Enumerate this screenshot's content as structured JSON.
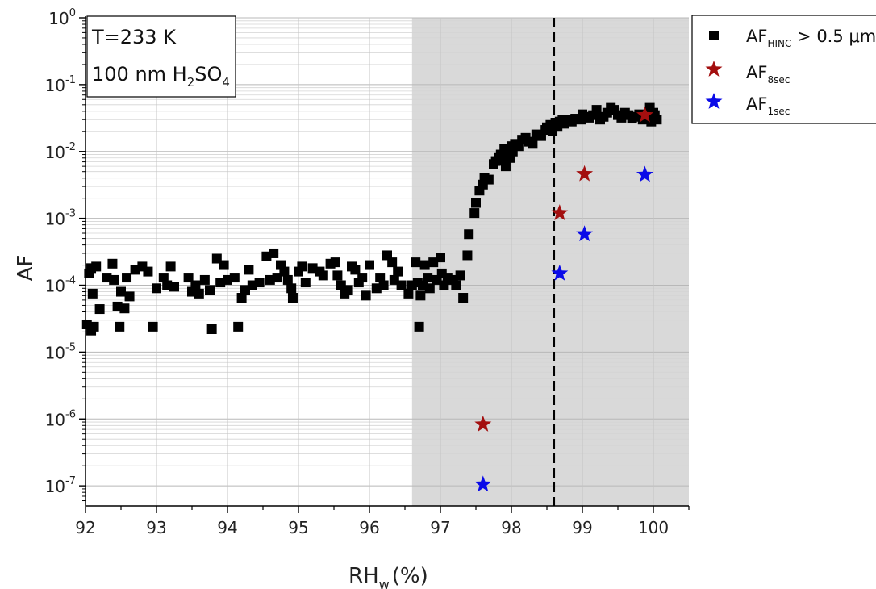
{
  "chart_data": {
    "type": "scatter",
    "xlabel_main": "RH",
    "xlabel_sub": "w",
    "xlabel_unit": "(%)",
    "ylabel": "AF",
    "xlim": [
      92,
      100.5
    ],
    "ylim_log10": [
      -7.3,
      0
    ],
    "y_scale": "log",
    "grid": true,
    "legend_placement": "top-right, outside plot",
    "x_ticks": [
      "92",
      "93",
      "94",
      "95",
      "96",
      "97",
      "98",
      "99",
      "100"
    ],
    "y_ticks": [
      {
        "base": "10",
        "exp": "0"
      },
      {
        "base": "10",
        "exp": "-1"
      },
      {
        "base": "10",
        "exp": "-2"
      },
      {
        "base": "10",
        "exp": "-3"
      },
      {
        "base": "10",
        "exp": "-4"
      },
      {
        "base": "10",
        "exp": "-5"
      },
      {
        "base": "10",
        "exp": "-6"
      },
      {
        "base": "10",
        "exp": "-7"
      }
    ],
    "shaded_region_x": [
      96.6,
      100.5
    ],
    "dashed_line_x": 98.6,
    "annotation": {
      "line1": "T=233 K",
      "line2_main": "100 nm H",
      "line2_sub1": "2",
      "line2_mid": "SO",
      "line2_sub2": "4"
    },
    "series": [
      {
        "name": "AF_HINC > 0.5 μm",
        "label_main": "AF",
        "label_sub": "HINC",
        "label_rest": " > 0.5 μm",
        "marker": "square",
        "color": "#000000",
        "points": [
          [
            92.02,
            2.6e-05
          ],
          [
            92.05,
            0.00015
          ],
          [
            92.08,
            0.00018
          ],
          [
            92.1,
            7.5e-05
          ],
          [
            92.12,
            2.4e-05
          ],
          [
            92.08,
            2.1e-05
          ],
          [
            92.15,
            0.00019
          ],
          [
            92.2,
            4.4e-05
          ],
          [
            92.3,
            0.00013
          ],
          [
            92.38,
            0.00021
          ],
          [
            92.4,
            0.00012
          ],
          [
            92.45,
            4.8e-05
          ],
          [
            92.48,
            2.4e-05
          ],
          [
            92.5,
            8e-05
          ],
          [
            92.55,
            4.5e-05
          ],
          [
            92.58,
            0.00013
          ],
          [
            92.62,
            6.8e-05
          ],
          [
            92.7,
            0.00017
          ],
          [
            92.8,
            0.00019
          ],
          [
            92.88,
            0.00016
          ],
          [
            92.95,
            2.4e-05
          ],
          [
            93.0,
            9e-05
          ],
          [
            93.1,
            0.00013
          ],
          [
            93.15,
            0.0001
          ],
          [
            93.2,
            0.00019
          ],
          [
            93.25,
            9.5e-05
          ],
          [
            93.45,
            0.00013
          ],
          [
            93.5,
            8e-05
          ],
          [
            93.55,
            0.0001
          ],
          [
            93.6,
            7.5e-05
          ],
          [
            93.68,
            0.00012
          ],
          [
            93.75,
            8.5e-05
          ],
          [
            93.78,
            2.2e-05
          ],
          [
            93.85,
            0.00025
          ],
          [
            93.9,
            0.00011
          ],
          [
            93.95,
            0.0002
          ],
          [
            94.0,
            0.00012
          ],
          [
            94.1,
            0.00013
          ],
          [
            94.15,
            2.4e-05
          ],
          [
            94.2,
            6.5e-05
          ],
          [
            94.25,
            8.5e-05
          ],
          [
            94.3,
            0.00017
          ],
          [
            94.35,
            0.0001
          ],
          [
            94.45,
            0.00011
          ],
          [
            94.55,
            0.00027
          ],
          [
            94.65,
            0.0003
          ],
          [
            94.6,
            0.00012
          ],
          [
            94.7,
            0.00013
          ],
          [
            94.75,
            0.0002
          ],
          [
            94.8,
            0.00016
          ],
          [
            94.85,
            0.00012
          ],
          [
            94.9,
            9e-05
          ],
          [
            94.92,
            6.5e-05
          ],
          [
            95.0,
            0.00016
          ],
          [
            95.05,
            0.00019
          ],
          [
            95.1,
            0.00011
          ],
          [
            95.2,
            0.00018
          ],
          [
            95.3,
            0.00016
          ],
          [
            95.35,
            0.00014
          ],
          [
            95.45,
            0.00021
          ],
          [
            95.52,
            0.00022
          ],
          [
            95.55,
            0.00014
          ],
          [
            95.6,
            0.0001
          ],
          [
            95.65,
            7.5e-05
          ],
          [
            95.7,
            8.5e-05
          ],
          [
            95.75,
            0.00019
          ],
          [
            95.8,
            0.00017
          ],
          [
            95.85,
            0.00011
          ],
          [
            95.9,
            0.00013
          ],
          [
            95.95,
            7e-05
          ],
          [
            96.0,
            0.0002
          ],
          [
            96.1,
            9e-05
          ],
          [
            96.15,
            0.00013
          ],
          [
            96.2,
            0.0001
          ],
          [
            96.25,
            0.00028
          ],
          [
            96.32,
            0.00022
          ],
          [
            96.35,
            0.00012
          ],
          [
            96.4,
            0.00016
          ],
          [
            96.45,
            0.0001
          ],
          [
            96.55,
            7.5e-05
          ],
          [
            96.6,
            0.0001
          ],
          [
            96.65,
            0.00022
          ],
          [
            96.68,
            0.00011
          ],
          [
            96.7,
            2.4e-05
          ],
          [
            96.72,
            7e-05
          ],
          [
            96.75,
            0.0001
          ],
          [
            96.78,
            0.0002
          ],
          [
            96.82,
            0.00013
          ],
          [
            96.85,
            9e-05
          ],
          [
            96.9,
            0.00022
          ],
          [
            96.95,
            0.00012
          ],
          [
            97.0,
            0.00026
          ],
          [
            97.02,
            0.00015
          ],
          [
            97.05,
            0.0001
          ],
          [
            97.1,
            0.00013
          ],
          [
            97.18,
            0.00012
          ],
          [
            97.22,
            0.0001
          ],
          [
            97.28,
            0.00014
          ],
          [
            97.32,
            6.5e-05
          ],
          [
            97.38,
            0.00028
          ],
          [
            97.4,
            0.00058
          ],
          [
            97.48,
            0.0012
          ],
          [
            97.5,
            0.0017
          ],
          [
            97.55,
            0.0026
          ],
          [
            97.6,
            0.0032
          ],
          [
            97.62,
            0.004
          ],
          [
            97.68,
            0.0038
          ],
          [
            97.75,
            0.0065
          ],
          [
            97.78,
            0.0072
          ],
          [
            97.82,
            0.008
          ],
          [
            97.85,
            0.009
          ],
          [
            97.88,
            0.0075
          ],
          [
            97.9,
            0.011
          ],
          [
            97.92,
            0.006
          ],
          [
            97.95,
            0.009
          ],
          [
            97.98,
            0.008
          ],
          [
            98.0,
            0.012
          ],
          [
            98.02,
            0.01
          ],
          [
            98.05,
            0.013
          ],
          [
            98.1,
            0.012
          ],
          [
            98.15,
            0.015
          ],
          [
            98.2,
            0.016
          ],
          [
            98.25,
            0.014
          ],
          [
            98.3,
            0.013
          ],
          [
            98.35,
            0.018
          ],
          [
            98.42,
            0.017
          ],
          [
            98.48,
            0.021
          ],
          [
            98.5,
            0.023
          ],
          [
            98.55,
            0.025
          ],
          [
            98.58,
            0.02
          ],
          [
            98.62,
            0.027
          ],
          [
            98.65,
            0.024
          ],
          [
            98.68,
            0.028
          ],
          [
            98.72,
            0.03
          ],
          [
            98.75,
            0.026
          ],
          [
            98.8,
            0.03
          ],
          [
            98.85,
            0.028
          ],
          [
            98.9,
            0.031
          ],
          [
            98.98,
            0.03
          ],
          [
            99.0,
            0.036
          ],
          [
            99.05,
            0.033
          ],
          [
            99.1,
            0.032
          ],
          [
            99.15,
            0.035
          ],
          [
            99.2,
            0.042
          ],
          [
            99.25,
            0.03
          ],
          [
            99.3,
            0.033
          ],
          [
            99.35,
            0.038
          ],
          [
            99.4,
            0.045
          ],
          [
            99.45,
            0.042
          ],
          [
            99.5,
            0.035
          ],
          [
            99.55,
            0.032
          ],
          [
            99.6,
            0.038
          ],
          [
            99.65,
            0.035
          ],
          [
            99.7,
            0.031
          ],
          [
            99.75,
            0.033
          ],
          [
            99.8,
            0.036
          ],
          [
            99.85,
            0.03
          ],
          [
            99.9,
            0.033
          ],
          [
            99.95,
            0.045
          ],
          [
            99.97,
            0.028
          ],
          [
            100.0,
            0.038
          ],
          [
            100.02,
            0.035
          ],
          [
            100.05,
            0.03
          ]
        ]
      },
      {
        "name": "AF_8sec",
        "label_main": "AF",
        "label_sub": "8sec",
        "label_rest": "",
        "marker": "star",
        "color": "#a30f0f",
        "points": [
          [
            97.6,
            8.3e-07
          ],
          [
            98.68,
            0.0012
          ],
          [
            99.03,
            0.0046
          ],
          [
            99.88,
            0.035
          ]
        ]
      },
      {
        "name": "AF_1sec",
        "label_main": "AF",
        "label_sub": "1sec",
        "label_rest": "",
        "marker": "star",
        "color": "#0a0ae8",
        "points": [
          [
            97.6,
            1.05e-07
          ],
          [
            98.68,
            0.00015
          ],
          [
            99.03,
            0.00058
          ],
          [
            99.88,
            0.0045
          ]
        ]
      }
    ]
  }
}
